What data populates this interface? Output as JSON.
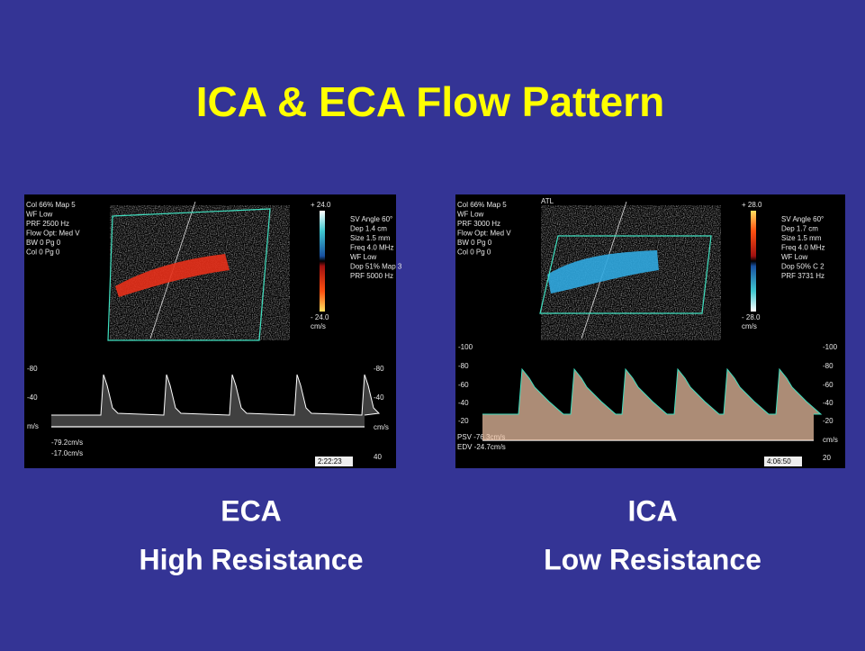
{
  "title": "ICA & ECA Flow Pattern",
  "panels": [
    {
      "caption": [
        "ECA",
        "High Resistance"
      ],
      "info": [
        "Col 66%  Map 5",
        "WF Low",
        "PRF 2500  Hz",
        "Flow Opt: Med V",
        "BW 0    Pg 0",
        "Col 0    Pg 0"
      ],
      "scale": [
        "+ 24.0",
        "- 24.0",
        "cm/s"
      ],
      "settings": [
        "SV Angle 60°",
        "Dep 1.4  cm",
        "Size 1.5  mm",
        "Freq 4.0  MHz",
        "WF Low",
        "Dop 51%  Map 3",
        "PRF 5000  Hz"
      ],
      "left_axis": [
        "-80",
        "-40",
        "m/s"
      ],
      "right_axis": [
        "-80",
        "-40",
        "cm/s",
        "40"
      ],
      "measurements": [
        "-79.2cm/s",
        "-17.0cm/s"
      ],
      "time": "2:22:23"
    },
    {
      "caption": [
        "ICA",
        "Low Resistance"
      ],
      "brand": "ATL",
      "info": [
        "Col 66%  Map 5",
        "WF Low",
        "PRF 3000  Hz",
        "Flow Opt: Med V",
        "BW 0    Pg 0",
        "Col 0    Pg 0"
      ],
      "scale": [
        "+ 28.0",
        "- 28.0",
        "cm/s"
      ],
      "settings": [
        "SV Angle 60°",
        "Dep 1.7  cm",
        "Size 1.5  mm",
        "Freq 4.0  MHz",
        "WF Low",
        "Dop 50%  C 2",
        "PRF 3731  Hz"
      ],
      "left_axis": [
        "-100",
        "-80",
        "-60",
        "-40",
        "-20"
      ],
      "right_axis": [
        "-100",
        "-80",
        "-60",
        "-40",
        "-20",
        "cm/s",
        "20"
      ],
      "measurements": [
        "PSV   -76.3cm/s",
        "EDV   -24.7cm/s"
      ],
      "time": "4:06:50"
    }
  ]
}
